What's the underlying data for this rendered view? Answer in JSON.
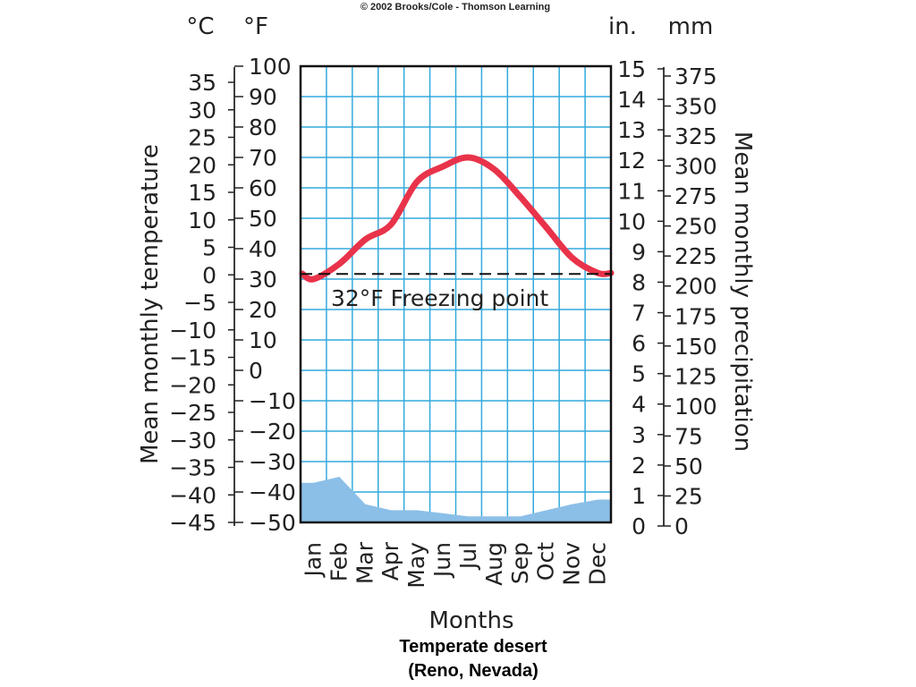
{
  "copyright": "© 2002 Brooks/Cole - Thomson Learning",
  "caption": {
    "title": "Temperate desert",
    "subtitle": "(Reno, Nevada)"
  },
  "colors": {
    "temperature_line": "#e8334a",
    "precipitation_fill": "#8bbfe8",
    "grid": "#33aadd",
    "freezing_line": "#111111"
  },
  "chart_data": {
    "type": "line",
    "title": "",
    "xlabel": "Months",
    "categories": [
      "Jan",
      "Feb",
      "Mar",
      "Apr",
      "May",
      "Jun",
      "Jul",
      "Aug",
      "Sep",
      "Oct",
      "Nov",
      "Dec"
    ],
    "left_axes": {
      "label": "Mean monthly temperature",
      "celsius": {
        "unit": "°C",
        "ticks": [
          "35",
          "30",
          "25",
          "20",
          "15",
          "10",
          "5",
          "0",
          "−5",
          "−10",
          "−15",
          "−20",
          "−25",
          "−30",
          "−35",
          "−40",
          "−45"
        ]
      },
      "fahrenheit": {
        "unit": "°F",
        "ticks": [
          "100",
          "90",
          "80",
          "70",
          "60",
          "50",
          "40",
          "30",
          "20",
          "10",
          "0",
          "−10",
          "−20",
          "−30",
          "−40",
          "−50"
        ]
      },
      "ylim_f": [
        -50,
        100
      ]
    },
    "right_axes": {
      "label": "Mean monthly precipitation",
      "inches": {
        "unit": "in.",
        "ticks": [
          "15",
          "14",
          "13",
          "12",
          "11",
          "10",
          "9",
          "8",
          "7",
          "6",
          "5",
          "4",
          "3",
          "2",
          "1",
          "0"
        ]
      },
      "millimeters": {
        "unit": "mm",
        "ticks": [
          "375",
          "350",
          "325",
          "300",
          "275",
          "250",
          "225",
          "200",
          "175",
          "150",
          "125",
          "100",
          "75",
          "50",
          "25",
          "0"
        ]
      },
      "ylim_in": [
        0,
        15
      ]
    },
    "series": [
      {
        "kind": "line",
        "unit": "°F",
        "values": [
          30,
          35,
          43,
          48,
          62,
          67,
          70,
          66,
          57,
          47,
          37,
          32
        ]
      },
      {
        "kind": "area",
        "unit": "in.",
        "values": [
          1.3,
          1.5,
          0.6,
          0.4,
          0.4,
          0.3,
          0.2,
          0.2,
          0.2,
          0.4,
          0.6,
          0.75
        ]
      }
    ],
    "reference_line": {
      "value_f": 32,
      "label": "32°F Freezing point"
    },
    "grid": true
  }
}
